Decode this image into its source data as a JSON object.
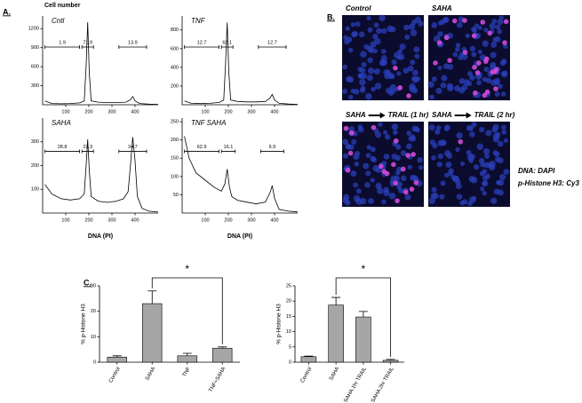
{
  "panel_labels": {
    "a": "A.",
    "b": "B.",
    "c": "C."
  },
  "images": {
    "items": [
      {
        "label": "Control"
      },
      {
        "label": "SAHA"
      },
      {
        "label": "SAHA",
        "label2": "TRAIL (1 hr)"
      },
      {
        "label": "SAHA",
        "label2": "TRAIL (2 hr)"
      }
    ],
    "stain1": "DNA: DAPI",
    "stain2": "p-Histone H3: Cy3"
  },
  "chart_data": [
    {
      "type": "line",
      "title": "Cntl",
      "ylabel": "Cell number",
      "color": "#000000",
      "x": [
        10,
        40,
        80,
        120,
        160,
        180,
        188,
        195,
        202,
        210,
        240,
        280,
        320,
        360,
        380,
        390,
        400,
        420,
        460,
        500
      ],
      "values": [
        60,
        20,
        15,
        20,
        30,
        60,
        600,
        1300,
        500,
        60,
        40,
        35,
        35,
        40,
        80,
        130,
        60,
        20,
        10,
        5
      ],
      "xlim": [
        0,
        500
      ],
      "ylim": [
        0,
        1400
      ],
      "xticks": [
        100,
        200,
        300,
        400
      ],
      "yticks": [
        300,
        600,
        900,
        1200
      ],
      "gates": [
        {
          "x": [
            10,
            160
          ],
          "label": "1.9"
        },
        {
          "x": [
            170,
            220
          ],
          "label": "71.9"
        },
        {
          "x": [
            330,
            450
          ],
          "label": "13.9"
        }
      ]
    },
    {
      "type": "line",
      "title": "TNF",
      "color": "#000000",
      "x": [
        10,
        40,
        80,
        120,
        160,
        180,
        188,
        195,
        202,
        210,
        240,
        280,
        320,
        360,
        380,
        390,
        400,
        420,
        460,
        500
      ],
      "values": [
        40,
        15,
        12,
        15,
        25,
        50,
        450,
        880,
        350,
        50,
        35,
        30,
        30,
        35,
        70,
        110,
        50,
        15,
        8,
        4
      ],
      "xlim": [
        0,
        500
      ],
      "ylim": [
        0,
        950
      ],
      "xticks": [
        100,
        200,
        300,
        400
      ],
      "yticks": [
        200,
        400,
        600,
        800
      ],
      "gates": [
        {
          "x": [
            10,
            160
          ],
          "label": "12.7"
        },
        {
          "x": [
            170,
            220
          ],
          "label": "62.1"
        },
        {
          "x": [
            330,
            450
          ],
          "label": "12.7"
        }
      ]
    },
    {
      "type": "line",
      "title": "SAHA",
      "xlabel": "DNA (PI)",
      "color": "#000000",
      "x": [
        10,
        40,
        80,
        120,
        160,
        180,
        188,
        195,
        202,
        210,
        240,
        280,
        320,
        350,
        370,
        380,
        390,
        400,
        410,
        430,
        460,
        500
      ],
      "values": [
        120,
        80,
        60,
        55,
        60,
        80,
        200,
        310,
        180,
        70,
        50,
        45,
        50,
        60,
        90,
        200,
        320,
        220,
        70,
        20,
        8,
        4
      ],
      "xlim": [
        0,
        500
      ],
      "ylim": [
        0,
        400
      ],
      "xticks": [
        100,
        200,
        300,
        400
      ],
      "yticks": [
        100,
        200,
        300
      ],
      "gates": [
        {
          "x": [
            10,
            160
          ],
          "label": "28.8"
        },
        {
          "x": [
            170,
            220
          ],
          "label": "23.3"
        },
        {
          "x": [
            330,
            450
          ],
          "label": "34.7"
        }
      ]
    },
    {
      "type": "line",
      "title": "TNF SAHA",
      "xlabel": "DNA (PI)",
      "color": "#000000",
      "x": [
        10,
        30,
        60,
        100,
        140,
        170,
        185,
        195,
        205,
        215,
        240,
        280,
        320,
        360,
        380,
        390,
        400,
        420,
        460,
        500
      ],
      "values": [
        210,
        150,
        110,
        90,
        70,
        60,
        80,
        120,
        70,
        45,
        35,
        30,
        25,
        30,
        55,
        75,
        40,
        10,
        5,
        3
      ],
      "xlim": [
        0,
        500
      ],
      "ylim": [
        0,
        260
      ],
      "xticks": [
        100,
        200,
        300,
        400
      ],
      "yticks": [
        50,
        100,
        150,
        200,
        250
      ],
      "gates": [
        {
          "x": [
            10,
            160
          ],
          "label": "62.9"
        },
        {
          "x": [
            170,
            230
          ],
          "label": "16.1"
        },
        {
          "x": [
            340,
            440
          ],
          "label": "6.9"
        }
      ]
    },
    {
      "type": "bar",
      "ylabel": "% p-Histone H3",
      "color": "#a6a6a6",
      "categories": [
        "Control",
        "SAHA",
        "TNF",
        "TNF+SAHA"
      ],
      "values": [
        2,
        23,
        2.5,
        5.5
      ],
      "errors": [
        0.5,
        5,
        1,
        0.5
      ],
      "ylim": [
        0,
        30
      ],
      "yticks": [
        0,
        10,
        20,
        30
      ],
      "annotation": "*"
    },
    {
      "type": "bar",
      "ylabel": "% p-Histone H3",
      "color": "#a6a6a6",
      "categories": [
        "Control",
        "SAHA",
        "SAHA 1hr TRAIL",
        "SAHA 2hr TRAIL"
      ],
      "values": [
        1.8,
        18.7,
        14.8,
        0.6
      ],
      "errors": [
        0.2,
        2.5,
        1.8,
        0.3
      ],
      "ylim": [
        0,
        25
      ],
      "yticks": [
        0,
        5,
        10,
        15,
        20,
        25
      ],
      "annotation": "*"
    }
  ]
}
